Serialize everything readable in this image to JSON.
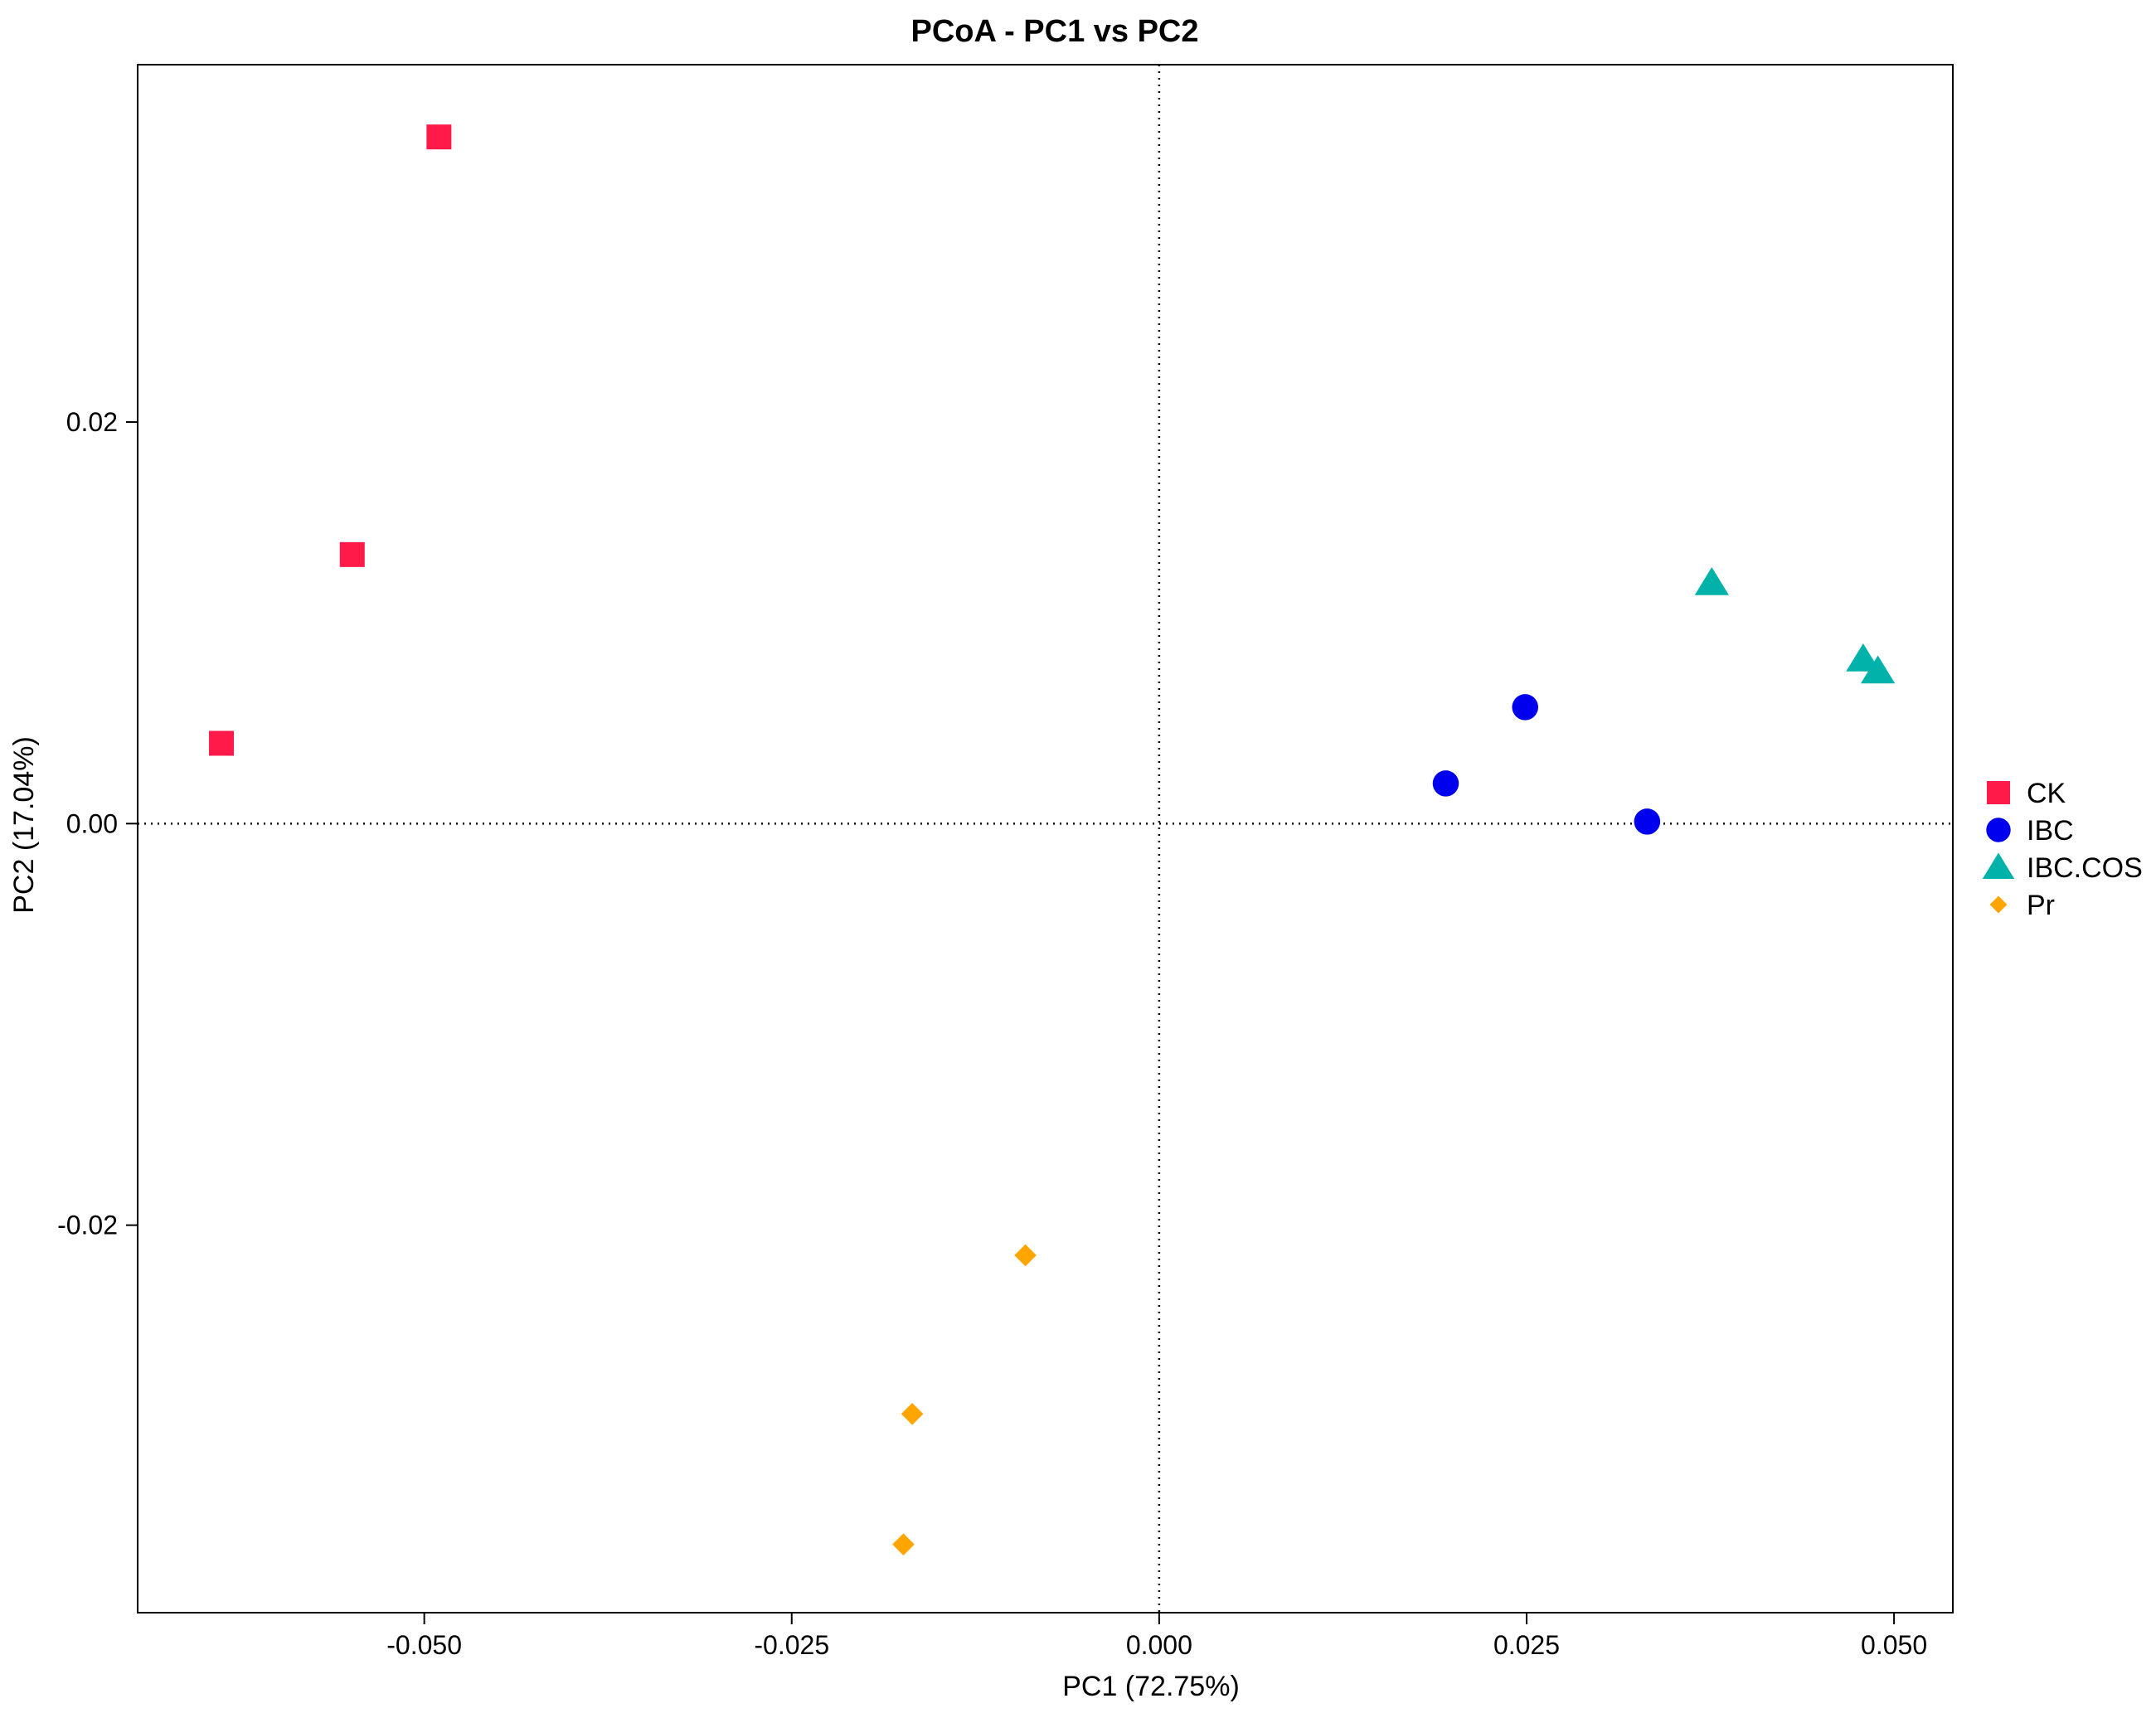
{
  "chart_data": {
    "type": "scatter",
    "title": "PCoA - PC1 vs PC2",
    "xlabel": "PC1 (72.75%)",
    "ylabel": "PC2 (17.04%)",
    "xlim": [
      -0.0695,
      0.054
    ],
    "ylim": [
      -0.0393,
      0.0378
    ],
    "xticks": [
      {
        "value": -0.05,
        "label": "-0.050"
      },
      {
        "value": -0.025,
        "label": "-0.025"
      },
      {
        "value": 0.0,
        "label": "0.000"
      },
      {
        "value": 0.025,
        "label": "0.025"
      },
      {
        "value": 0.05,
        "label": "0.050"
      }
    ],
    "yticks": [
      {
        "value": -0.02,
        "label": "-0.02"
      },
      {
        "value": 0.0,
        "label": "0.00"
      },
      {
        "value": 0.02,
        "label": "0.02"
      }
    ],
    "reference_lines": {
      "x": 0.0,
      "y": 0.0,
      "style": "dotted"
    },
    "grid": false,
    "legend_position": "right",
    "series": [
      {
        "name": "CK",
        "shape": "square",
        "color": "#ff1a4a",
        "points": [
          [
            -0.049,
            0.0342
          ],
          [
            -0.0549,
            0.0134
          ],
          [
            -0.0638,
            0.004
          ]
        ]
      },
      {
        "name": "IBC",
        "shape": "circle",
        "color": "#0000ee",
        "points": [
          [
            0.0249,
            0.0058
          ],
          [
            0.0195,
            0.002
          ],
          [
            0.0332,
            0.0001
          ]
        ]
      },
      {
        "name": "IBC.COS",
        "shape": "triangle",
        "color": "#00b2a9",
        "points": [
          [
            0.0376,
            0.012
          ],
          [
            0.0479,
            0.0082
          ],
          [
            0.0489,
            0.0076
          ]
        ]
      },
      {
        "name": "Pr",
        "shape": "diamond",
        "color": "#ffa500",
        "points": [
          [
            -0.0091,
            -0.0215
          ],
          [
            -0.0168,
            -0.0294
          ],
          [
            -0.0174,
            -0.0359
          ]
        ]
      }
    ]
  }
}
